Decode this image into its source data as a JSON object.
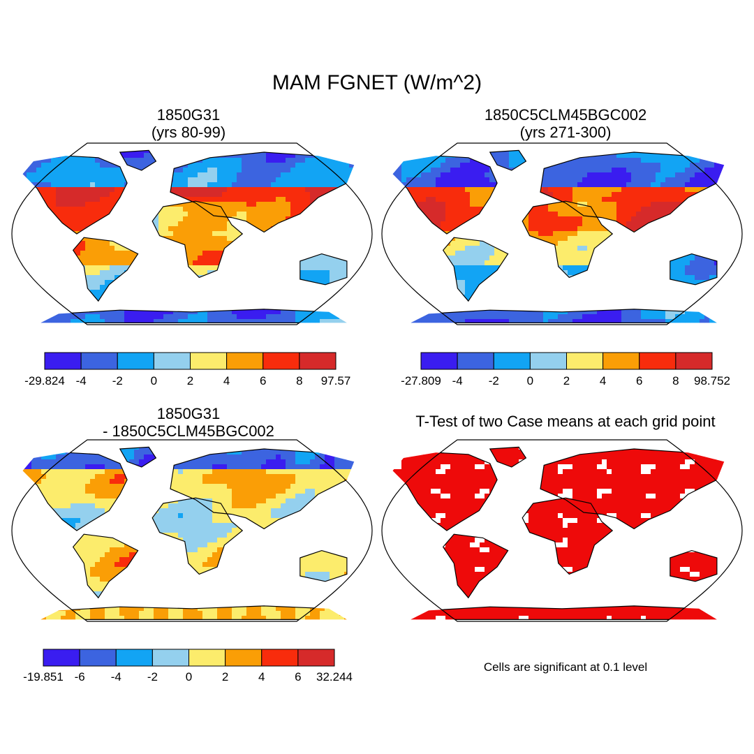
{
  "title": "MAM FGNET (W/m^2)",
  "panels": [
    {
      "id": "p1",
      "title_line1": "1850G31",
      "title_line2": "(yrs 80-99)",
      "colorbar": {
        "colors": [
          "#3a1df0",
          "#3c64e0",
          "#12a4f4",
          "#94d0ee",
          "#fcec6c",
          "#fa9e06",
          "#f82c0c",
          "#d62a2a"
        ],
        "labels": [
          "-29.824",
          "-4",
          "-2",
          "0",
          "2",
          "4",
          "6",
          "8",
          "97.57"
        ]
      }
    },
    {
      "id": "p2",
      "title_line1": "1850C5CLM45BGC002",
      "title_line2": "(yrs 271-300)",
      "colorbar": {
        "colors": [
          "#3a1df0",
          "#3c64e0",
          "#12a4f4",
          "#94d0ee",
          "#fcec6c",
          "#fa9e06",
          "#f82c0c",
          "#d62a2a"
        ],
        "labels": [
          "-27.809",
          "-4",
          "-2",
          "0",
          "2",
          "4",
          "6",
          "8",
          "98.752"
        ]
      }
    },
    {
      "id": "p3",
      "title_line1": "1850G31",
      "title_line2": "- 1850C5CLM45BGC002",
      "colorbar": {
        "colors": [
          "#3a1df0",
          "#3c64e0",
          "#12a4f4",
          "#94d0ee",
          "#fcec6c",
          "#fa9e06",
          "#f82c0c",
          "#d62a2a"
        ],
        "labels": [
          "-19.851",
          "-6",
          "-4",
          "-2",
          "0",
          "2",
          "4",
          "6",
          "32.244"
        ]
      }
    },
    {
      "id": "p4",
      "title_line1": "T-Test of two Case means at each grid point",
      "title_line2": "",
      "note": "Cells are significant at 0.1 level"
    }
  ],
  "map": {
    "projection": "robinson",
    "ocean_color": "#ffffff",
    "coastline_color": "#000000",
    "significance_color": "#ee0a0a"
  }
}
